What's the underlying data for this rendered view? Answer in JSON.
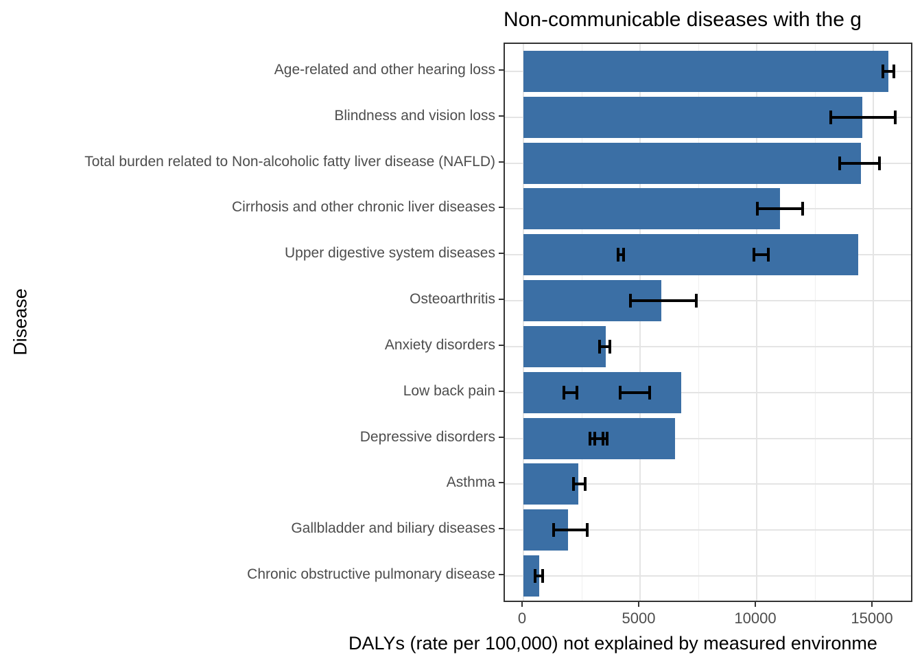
{
  "title": "Non-communicable diseases with the g",
  "chart_data": {
    "type": "bar",
    "orientation": "horizontal",
    "title": "Non-communicable diseases with the g",
    "title_note": "title is clipped at the right edge of the image",
    "xlabel": "DALYs (rate per 100,000) not explained by measured environme",
    "xlabel_note": "x axis label is clipped at the right edge of the image",
    "ylabel": "Disease",
    "xlim": [
      0,
      16700
    ],
    "x_major_ticks": [
      0,
      5000,
      10000,
      15000
    ],
    "x_tick_labels": [
      "0",
      "5000",
      "10000",
      "15000"
    ],
    "x_minor_gridlines": [
      2500,
      7500,
      12500
    ],
    "grid": true,
    "legend": "none",
    "bar_color": "#3B6FA5",
    "grid_major_color": "#e4e4e4",
    "grid_minor_color": "#efefef",
    "panel_border_color": "#333333",
    "axis_text_color": "#4d4d4d",
    "error_bar_color": "#000000",
    "categories": [
      "Age-related and other hearing loss",
      "Blindness and vision loss",
      "Total burden related to Non-alcoholic fatty liver disease (NAFLD)",
      "Cirrhosis and other chronic liver diseases",
      "Upper digestive system diseases",
      "Osteoarthritis",
      "Anxiety disorders",
      "Low back pain",
      "Depressive disorders",
      "Asthma",
      "Gallbladder and biliary diseases",
      "Chronic obstructive pulmonary disease"
    ],
    "values": [
      15650,
      14530,
      14470,
      11000,
      14350,
      5910,
      3530,
      6760,
      6490,
      2350,
      1910,
      680
    ],
    "error_bars": [
      [
        [
          15400,
          15880
        ]
      ],
      [
        [
          13190,
          15930
        ]
      ],
      [
        [
          13550,
          15260
        ]
      ],
      [
        [
          10030,
          11960
        ]
      ],
      [
        [
          4060,
          4290
        ],
        [
          9870,
          10500
        ]
      ],
      [
        [
          4590,
          7410
        ]
      ],
      [
        [
          3260,
          3710
        ]
      ],
      [
        [
          1740,
          2290
        ],
        [
          4150,
          5410
        ]
      ],
      [
        [
          2850,
          3410
        ],
        [
          3060,
          3590
        ]
      ],
      [
        [
          2150,
          2640
        ]
      ],
      [
        [
          1290,
          2730
        ]
      ],
      [
        [
          500,
          830
        ]
      ]
    ]
  }
}
